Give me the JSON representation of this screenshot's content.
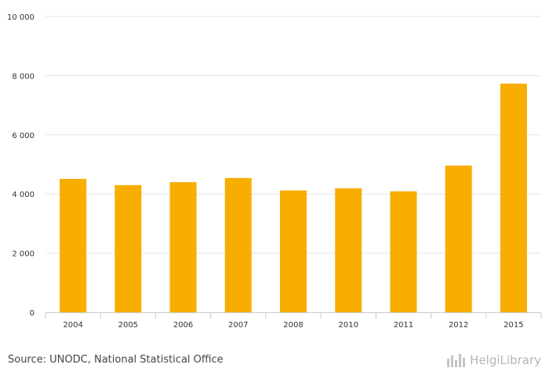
{
  "chart_data": {
    "type": "bar",
    "categories": [
      "2004",
      "2005",
      "2006",
      "2007",
      "2008",
      "2010",
      "2011",
      "2012",
      "2015"
    ],
    "values": [
      4510,
      4300,
      4400,
      4540,
      4120,
      4190,
      4090,
      4960,
      7730
    ],
    "title": "",
    "xlabel": "",
    "ylabel": "",
    "ylim": [
      0,
      10000
    ],
    "yticks": [
      0,
      2000,
      4000,
      6000,
      8000,
      10000
    ],
    "ytick_labels": [
      "0",
      "2 000",
      "4 000",
      "6 000",
      "8 000",
      "10 000"
    ],
    "grid": true,
    "bar_color": "#f7ae00"
  },
  "footer": {
    "source": "Source: UNODC, National Statistical Office",
    "logo": "HelgiLibrary"
  },
  "icons": {
    "logo_icon": "library-bars-icon"
  }
}
